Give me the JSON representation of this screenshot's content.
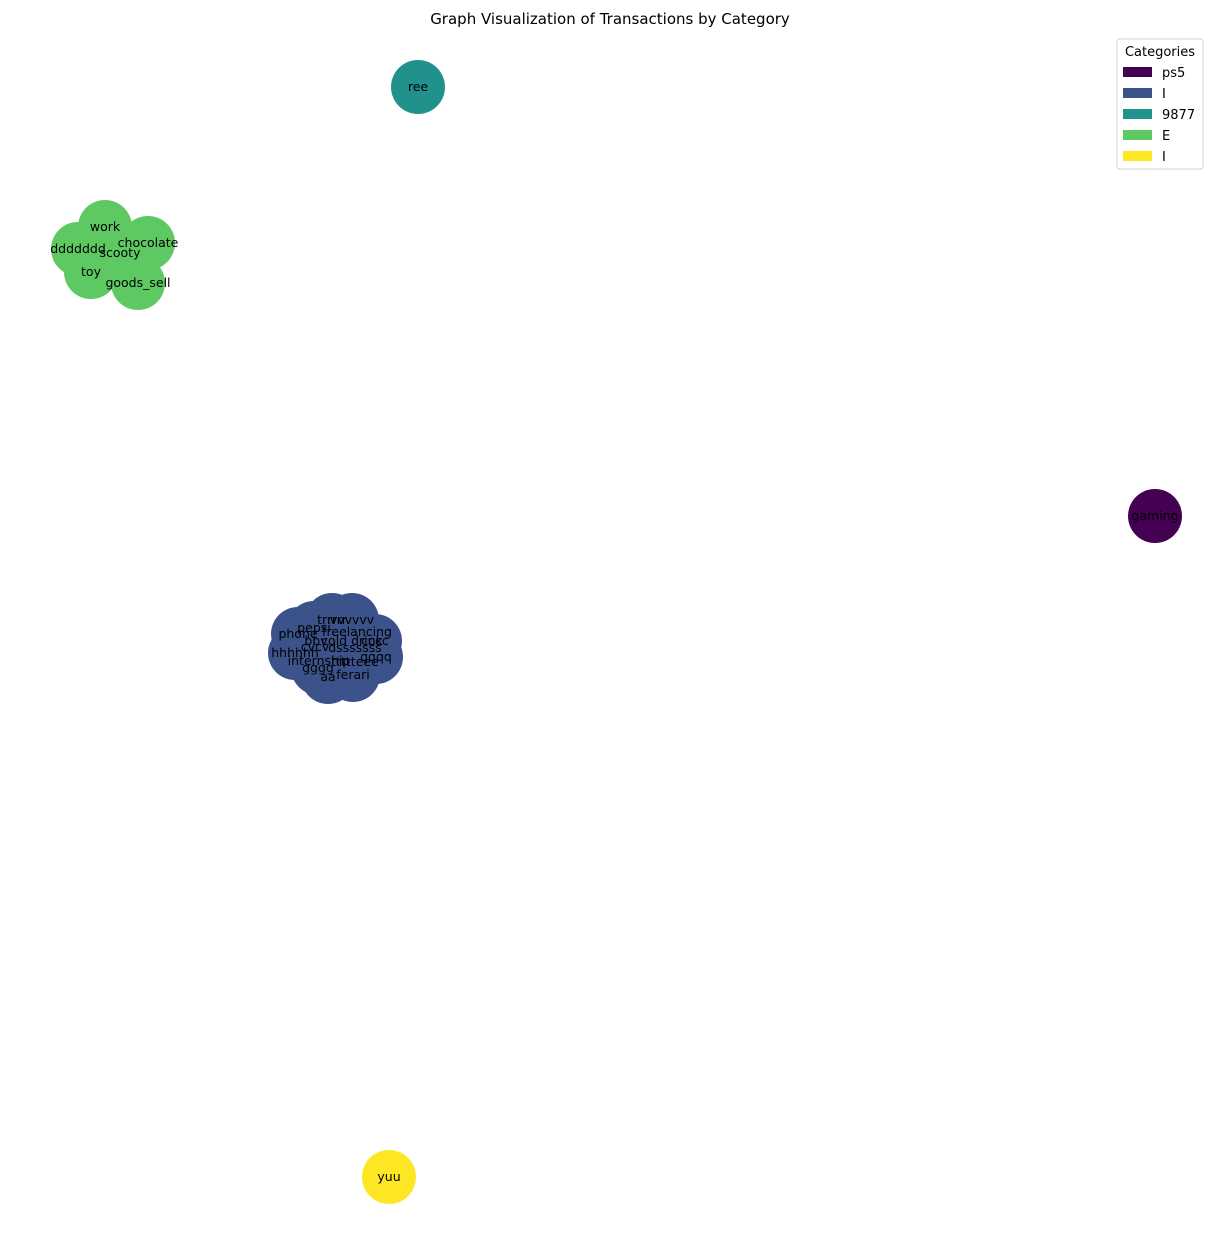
{
  "title": "Graph Visualization of Transactions by Category",
  "legend": {
    "title": "Categories",
    "placement": "top-right",
    "items": [
      {
        "label": "ps5",
        "color": "#440154"
      },
      {
        "label": "I",
        "color": "#3b528b"
      },
      {
        "label": "9877",
        "color": "#21918c"
      },
      {
        "label": "E",
        "color": "#5ec962"
      },
      {
        "label": "I",
        "color": "#fde725"
      }
    ]
  },
  "clusters": [
    {
      "category_index": 0,
      "nodes": [
        "gaming"
      ]
    },
    {
      "category_index": 1,
      "nodes": [
        "trrrrr",
        "vvvvvv",
        "pepsi",
        "freelancing",
        "phone",
        "cold drink",
        "bbv",
        "cccc",
        "cvcv",
        "dsssssss",
        "hhhhhh",
        "internship",
        "ttttteee",
        "qqqq",
        "gggg",
        "aa",
        "ferari"
      ]
    },
    {
      "category_index": 2,
      "nodes": [
        "ree"
      ]
    },
    {
      "category_index": 3,
      "nodes": [
        "work",
        "chocolate",
        "ddddddd",
        "scooty",
        "toy",
        "goods_sell"
      ]
    },
    {
      "category_index": 4,
      "nodes": [
        "yuu"
      ]
    }
  ]
}
